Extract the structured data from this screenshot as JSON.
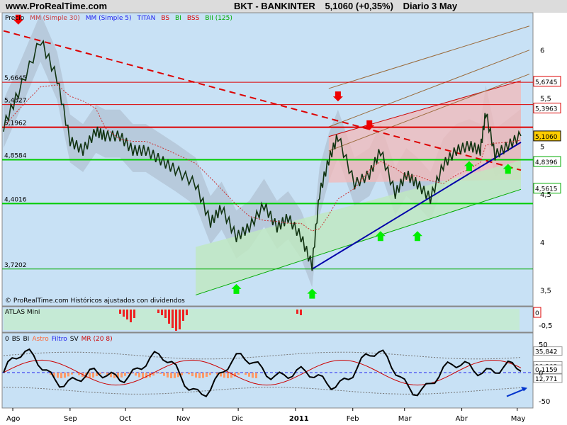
{
  "header": {
    "site": "www.ProRealTime.com",
    "symbol": "BKT - BANKINTER",
    "price_change": "5,1060 (+0,35%)",
    "period": "Diario 3 May"
  },
  "main_panel": {
    "legend": [
      {
        "text": "Precio",
        "color": "#000000"
      },
      {
        "text": "MM (Simple 30)",
        "color": "#cc3333"
      },
      {
        "text": "MM (Simple 5)",
        "color": "#2222ee"
      },
      {
        "text": "TITAN",
        "color": "#2222ee"
      },
      {
        "text": "BS",
        "color": "#dd0000"
      },
      {
        "text": "BI",
        "color": "#00aa00"
      },
      {
        "text": "BSS",
        "color": "#dd0000"
      },
      {
        "text": "BII (125)",
        "color": "#00aa00"
      }
    ],
    "copyright": "© ProRealTime.com  Históricos ajustados con dividendos",
    "left_levels": [
      "5,6645",
      "5,4327",
      "5,1962",
      "4,8584",
      "4,4016",
      "3,7202"
    ],
    "right_boxes": [
      {
        "text": "5,6745",
        "color": "#dd0000",
        "fill": "#ffffff"
      },
      {
        "text": "5,3963",
        "color": "#dd0000",
        "fill": "#ffffff"
      },
      {
        "text": "5,1060",
        "color": "#000000",
        "fill": "#ffcc00"
      },
      {
        "text": "4,8396",
        "color": "#00aa00",
        "fill": "#ffffff"
      },
      {
        "text": "4,5615",
        "color": "#00aa00",
        "fill": "#ffffff"
      }
    ],
    "y_ticks": [
      "6",
      "5,5",
      "5",
      "4,5",
      "4",
      "3,5"
    ]
  },
  "atlas_panel": {
    "label": "ATLAS Mini",
    "right_box": "0",
    "y_tick": "-0,5"
  },
  "osc_panel": {
    "legend": [
      {
        "text": "0",
        "color": "#000000"
      },
      {
        "text": "BS",
        "color": "#000000"
      },
      {
        "text": "BI",
        "color": "#000000"
      },
      {
        "text": "Astro",
        "color": "#ff6633"
      },
      {
        "text": "Filtro",
        "color": "#2222ee"
      },
      {
        "text": "SV",
        "color": "#000000"
      },
      {
        "text": "MR (20 8)",
        "color": "#cc0000"
      }
    ],
    "right_values": [
      "35,842",
      "10,202",
      "0,1159",
      "12,771"
    ],
    "y_ticks": [
      "50",
      "0",
      "-50"
    ]
  },
  "x_axis": {
    "labels": [
      "Ago",
      "Sep",
      "Oct",
      "Nov",
      "Dic",
      "2011",
      "Feb",
      "Mar",
      "Abr",
      "May"
    ]
  },
  "chart_data": {
    "type": "line",
    "title": "BKT - BANKINTER",
    "ylim": [
      3.35,
      6.3
    ],
    "x_range": [
      "2010-07-27",
      "2011-05-03"
    ],
    "price_series": {
      "name": "Precio",
      "x": [
        "2010-07-27",
        "2010-08-04",
        "2010-08-16",
        "2010-08-25",
        "2010-09-01",
        "2010-09-08",
        "2010-09-15",
        "2010-09-20",
        "2010-09-28",
        "2010-10-05",
        "2010-10-12",
        "2010-10-20",
        "2010-10-28",
        "2010-11-08",
        "2010-11-16",
        "2010-11-22",
        "2010-11-30",
        "2010-12-07",
        "2010-12-15",
        "2010-12-22",
        "2010-12-28",
        "2011-01-04",
        "2011-01-10",
        "2011-01-14",
        "2011-01-19",
        "2011-01-24",
        "2011-02-02",
        "2011-02-10",
        "2011-02-16",
        "2011-02-24",
        "2011-03-02",
        "2011-03-08",
        "2011-03-15",
        "2011-03-22",
        "2011-03-29",
        "2011-04-05",
        "2011-04-11",
        "2011-04-14",
        "2011-04-19",
        "2011-04-26",
        "2011-05-03"
      ],
      "values": [
        5.2,
        5.55,
        6.1,
        5.7,
        5.05,
        4.95,
        5.15,
        5.1,
        5.1,
        4.95,
        4.95,
        4.85,
        4.75,
        4.6,
        4.2,
        4.35,
        4.05,
        4.15,
        4.38,
        4.15,
        4.25,
        4.05,
        3.75,
        4.5,
        4.85,
        5.1,
        4.6,
        4.7,
        4.95,
        4.5,
        4.7,
        4.6,
        4.45,
        4.8,
        4.95,
        5.0,
        4.95,
        5.35,
        4.9,
        5.0,
        5.106
      ]
    },
    "levels": {
      "horizontal": [
        5.6645,
        5.4327,
        5.1962,
        4.8584,
        4.4016,
        3.7202
      ],
      "right_values": [
        5.6745,
        5.3963,
        5.106,
        4.8396,
        4.5615
      ]
    },
    "trendlines": [
      {
        "name": "resistencia",
        "x": [
          "2010-07-27",
          "2011-05-03"
        ],
        "y": [
          6.2,
          4.75
        ]
      },
      {
        "name": "soporte",
        "x": [
          "2011-01-10",
          "2011-05-03"
        ],
        "y": [
          3.72,
          5.04
        ]
      }
    ],
    "oscillator": {
      "ylim": [
        -60,
        60
      ],
      "y_ticks": [
        50,
        0,
        -50
      ]
    }
  }
}
